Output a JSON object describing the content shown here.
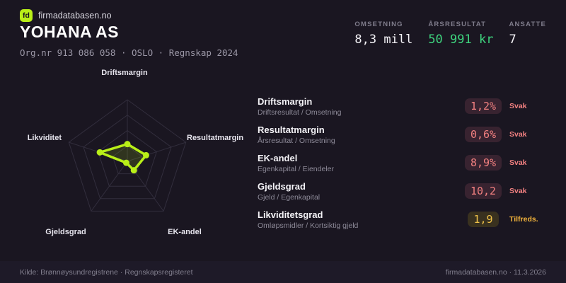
{
  "brand": {
    "logo_text": "fd",
    "site": "firmadatabasen.no"
  },
  "header": {
    "company": "YOHANA AS",
    "meta": "Org.nr 913 086 058 · OSLO · Regnskap 2024"
  },
  "stats": [
    {
      "label": "OMSETNING",
      "value": "8,3 mill",
      "tone": "neutral"
    },
    {
      "label": "ÅRSRESULTAT",
      "value": "50 991 kr",
      "tone": "positive"
    },
    {
      "label": "ANSATTE",
      "value": "7",
      "tone": "neutral"
    }
  ],
  "chart_data": {
    "type": "radar",
    "categories": [
      "Driftsmargin",
      "Resultatmargin",
      "EK-andel",
      "Gjeldsgrad",
      "Likviditet"
    ],
    "values": [
      0.28,
      0.32,
      0.18,
      0.03,
      0.47
    ],
    "value_range": [
      0,
      1
    ],
    "grid_levels": 4,
    "legend": false,
    "accent": "#b9ef18"
  },
  "metrics": [
    {
      "name": "Driftsmargin",
      "formula": "Driftsresultat / Omsetning",
      "value": "1,2%",
      "status": "Svak",
      "tone": "bad"
    },
    {
      "name": "Resultatmargin",
      "formula": "Årsresultat / Omsetning",
      "value": "0,6%",
      "status": "Svak",
      "tone": "bad"
    },
    {
      "name": "EK-andel",
      "formula": "Egenkapital / Eiendeler",
      "value": "8,9%",
      "status": "Svak",
      "tone": "bad"
    },
    {
      "name": "Gjeldsgrad",
      "formula": "Gjeld / Egenkapital",
      "value": "10,2",
      "status": "Svak",
      "tone": "bad"
    },
    {
      "name": "Likviditetsgrad",
      "formula": "Omløpsmidler / Kortsiktig gjeld",
      "value": "1,9",
      "status": "Tilfreds.",
      "tone": "ok"
    }
  ],
  "footer": {
    "left": "Kilde: Brønnøysundregistrene · Regnskapsregisteret",
    "right": "firmadatabasen.no · 11.3.2026"
  },
  "colors": {
    "bg": "#1a1621",
    "footer_bg": "#1e1a28",
    "accent": "#b9ef18",
    "positive": "#3ed47e",
    "negative_text": "#f28080",
    "negative_bg": "#382330",
    "warning_text": "#f0c24a",
    "warning_bg": "#39311f",
    "warning_status": "#f2b33b",
    "grid": "#322e3d"
  }
}
